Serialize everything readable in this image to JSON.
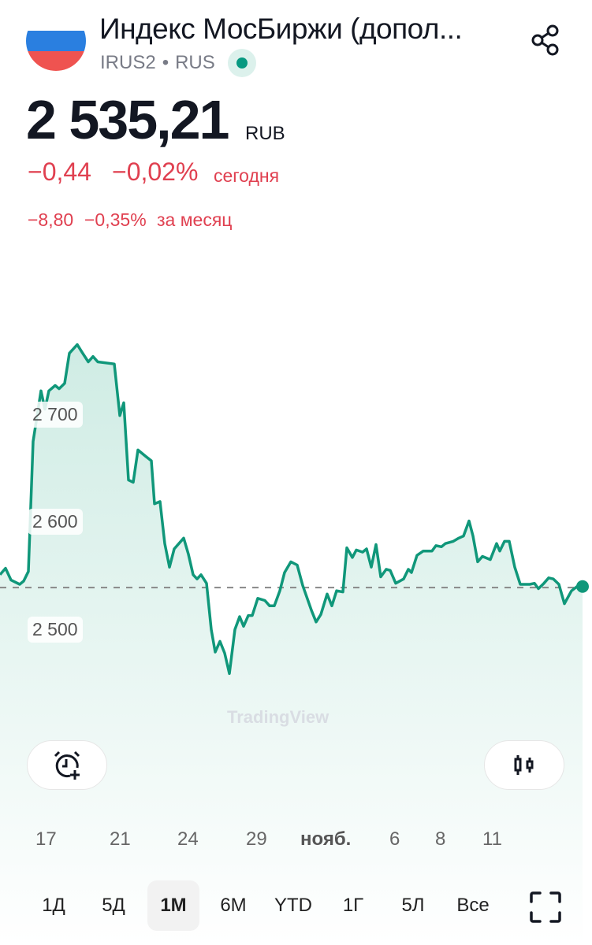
{
  "header": {
    "title": "Индекс МосБиржи (допол...",
    "ticker": "IRUS2",
    "separator": "•",
    "exchange": "RUS",
    "market_status": "open",
    "flag_colors": [
      "#ffffff",
      "#2a7fe0",
      "#ef5350"
    ]
  },
  "quote": {
    "price": "2 535,21",
    "currency": "RUB",
    "change_today": "−0,44",
    "change_today_pct": "−0,02%",
    "today_label": "сегодня",
    "change_month": "−8,80",
    "change_month_pct": "−0,35%",
    "month_label": "за месяц",
    "negative_color": "#e04050"
  },
  "chart_data": {
    "type": "area",
    "line_color": "#10977a",
    "y_ticks": [
      "2 700",
      "2 600",
      "2 500"
    ],
    "x_ticks": [
      "17",
      "21",
      "24",
      "29",
      "нояб.",
      "6",
      "8",
      "11"
    ],
    "reference_line": 2538,
    "values": [
      2550,
      2556,
      2545,
      2541,
      2544,
      2553,
      2674,
      2721,
      2704,
      2721,
      2726,
      2723,
      2728,
      2756,
      2764,
      2757,
      2748,
      2753,
      2748,
      2746,
      2698,
      2710,
      2638,
      2636,
      2666,
      2660,
      2656,
      2616,
      2618,
      2579,
      2557,
      2574,
      2584,
      2569,
      2550,
      2546,
      2550,
      2542,
      2499,
      2478,
      2488,
      2477,
      2458,
      2499,
      2511,
      2502,
      2512,
      2512,
      2528,
      2526,
      2521,
      2521,
      2535,
      2552,
      2562,
      2559,
      2540,
      2517,
      2506,
      2513,
      2532,
      2521,
      2535,
      2534,
      2575,
      2566,
      2573,
      2571,
      2574,
      2557,
      2578,
      2548,
      2555,
      2554,
      2542,
      2546,
      2555,
      2552,
      2568,
      2572,
      2572,
      2577,
      2576,
      2579,
      2581,
      2584,
      2586,
      2600,
      2586,
      2562,
      2567,
      2564,
      2579,
      2572,
      2581,
      2581,
      2557,
      2541,
      2541,
      2542,
      2537,
      2542,
      2547,
      2546,
      2541,
      2523,
      2535,
      2539,
      2539
    ],
    "watermark": "TradingView"
  },
  "controls": {
    "alert_icon": "alarm-plus-icon",
    "chart_type_icon": "candles-icon",
    "fullscreen_icon": "fullscreen-icon"
  },
  "timeframes": [
    {
      "label": "1Д"
    },
    {
      "label": "5Д"
    },
    {
      "label": "1М",
      "active": true
    },
    {
      "label": "6М"
    },
    {
      "label": "YTD"
    },
    {
      "label": "1Г"
    },
    {
      "label": "5Л"
    },
    {
      "label": "Все"
    }
  ]
}
